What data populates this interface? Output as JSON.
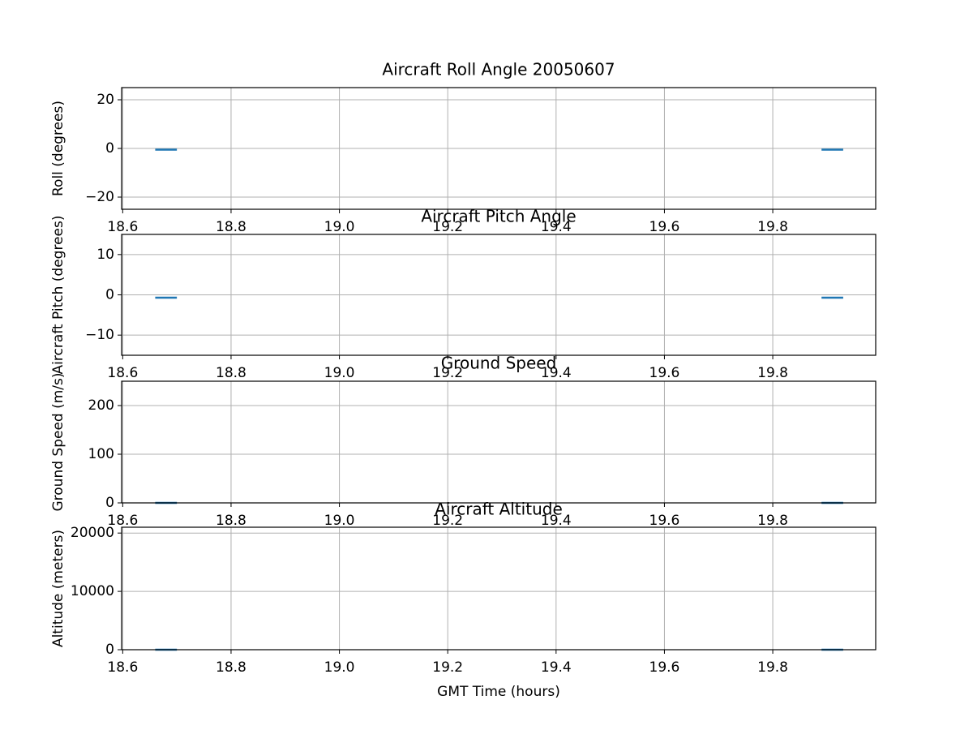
{
  "chart_data": [
    {
      "type": "line",
      "title": "Aircraft Roll Angle 20050607",
      "ylabel": "Roll (degrees)",
      "x": [
        18.66,
        18.7,
        null,
        19.89,
        19.93
      ],
      "series": [
        {
          "color": "#1f77b4",
          "values": [
            -0.5,
            -0.5,
            null,
            -0.5,
            -0.5
          ]
        }
      ],
      "xlim": [
        18.598,
        19.99
      ],
      "xticks": [
        18.6,
        18.8,
        {
          "value": 19,
          "label": "19.0"
        },
        19.2,
        19.4,
        19.6,
        19.8
      ],
      "ylim": [
        -25,
        25
      ],
      "yticks": [
        {
          "value": -20,
          "label": "−20"
        },
        0,
        20
      ],
      "grid": true
    },
    {
      "type": "line",
      "title": "Aircraft Pitch Angle",
      "ylabel": "Aircraft Pitch (degrees)",
      "x": [
        18.66,
        18.7,
        null,
        19.89,
        19.93
      ],
      "series": [
        {
          "color": "#1f77b4",
          "values": [
            -0.7,
            -0.7,
            null,
            -0.7,
            -0.7
          ]
        }
      ],
      "xlim": [
        18.598,
        19.99
      ],
      "xticks": [
        18.6,
        18.8,
        {
          "value": 19,
          "label": "19.0"
        },
        19.2,
        19.4,
        19.6,
        19.8
      ],
      "ylim": [
        -15,
        15
      ],
      "yticks": [
        {
          "value": -10,
          "label": "−10"
        },
        0,
        10
      ],
      "grid": true
    },
    {
      "type": "line",
      "title": "Ground Speed",
      "ylabel": "Ground Speed (m/s)",
      "x": [
        18.66,
        18.7,
        null,
        19.89,
        19.93
      ],
      "series": [
        {
          "color": "#1f77b4",
          "values": [
            0,
            0,
            null,
            0,
            0
          ]
        }
      ],
      "xlim": [
        18.598,
        19.99
      ],
      "xticks": [
        18.6,
        18.8,
        {
          "value": 19,
          "label": "19.0"
        },
        19.2,
        19.4,
        19.6,
        19.8
      ],
      "ylim": [
        0,
        250
      ],
      "yticks": [
        0,
        100,
        200
      ],
      "grid": true
    },
    {
      "type": "line",
      "title": "Aircraft Altitude",
      "ylabel": "Altitude (meters)",
      "xlabel": "GMT Time (hours)",
      "x": [
        18.66,
        18.7,
        null,
        19.89,
        19.93
      ],
      "series": [
        {
          "color": "#1f77b4",
          "values": [
            0,
            0,
            null,
            0,
            0
          ]
        }
      ],
      "xlim": [
        18.598,
        19.99
      ],
      "xticks": [
        18.6,
        18.8,
        {
          "value": 19,
          "label": "19.0"
        },
        19.2,
        19.4,
        19.6,
        19.8
      ],
      "ylim": [
        0,
        21000
      ],
      "yticks": [
        0,
        10000,
        20000
      ],
      "grid": true
    }
  ]
}
